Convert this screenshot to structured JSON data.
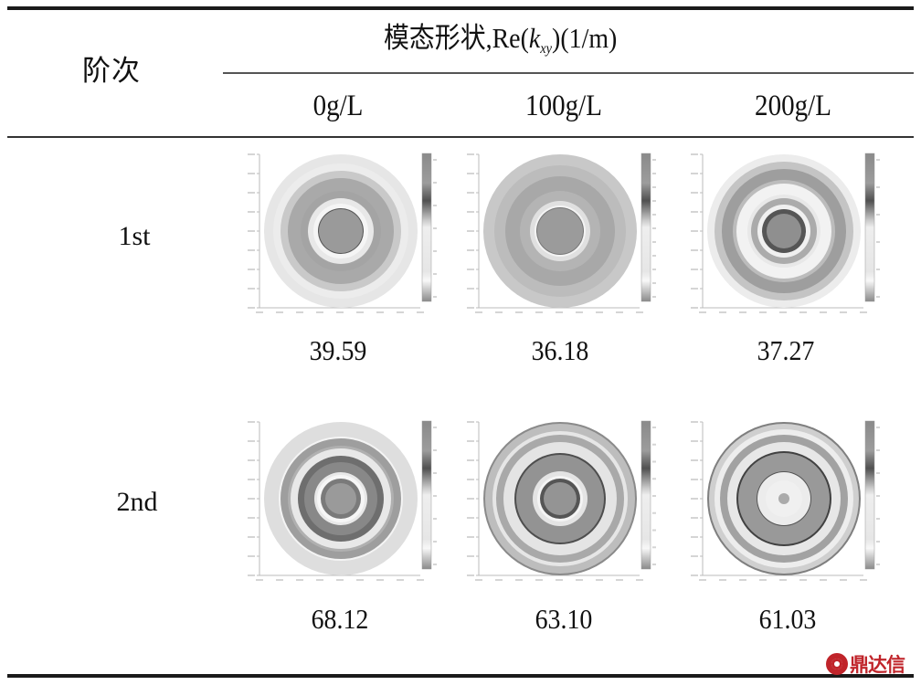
{
  "table": {
    "header": {
      "order_label": "阶次",
      "span_label_prefix": "模态形状,Re(",
      "span_label_var": "k",
      "span_label_sub": "xy",
      "span_label_suffix": ")(1/m)",
      "columns": [
        "0g/L",
        "100g/L",
        "200g/L"
      ]
    },
    "rows": [
      {
        "label": "1st",
        "values": [
          "39.59",
          "36.18",
          "37.27"
        ],
        "plots": [
          {
            "name": "mode-1st-0gL",
            "colorbar_ticks": [
              "0.7",
              "0.66",
              "0.6",
              "0.48",
              "0.36",
              "0.24",
              "0.1"
            ]
          },
          {
            "name": "mode-1st-100gL",
            "colorbar_ticks": [
              "0.66",
              "0.6",
              "0.48",
              "0.4",
              "0.36",
              "0.3",
              "0.28",
              "0.2",
              "0.16",
              "0.1",
              "0.06"
            ]
          },
          {
            "name": "mode-1st-200gL",
            "colorbar_ticks": [
              "0.3",
              "0.25",
              "0.2",
              "0.15",
              "0.1",
              "0.05"
            ]
          }
        ]
      },
      {
        "label": "2nd",
        "values": [
          "68.12",
          "63.10",
          "61.03"
        ],
        "plots": [
          {
            "name": "mode-2nd-0gL",
            "colorbar_ticks": [
              "0.7",
              "0.6",
              "0.5",
              "0.4",
              "0.3",
              "0.2",
              "0.1"
            ]
          },
          {
            "name": "mode-2nd-100gL",
            "colorbar_ticks": [
              "0.48",
              "0.4",
              "0.32",
              "0.3",
              "0.25",
              "0.2",
              "0.15",
              "0.1",
              "0.05"
            ]
          },
          {
            "name": "mode-2nd-200gL",
            "colorbar_ticks": [
              "0.7",
              "0.6",
              "0.5",
              "0.4",
              "0.3",
              "0.2",
              "0.1"
            ]
          }
        ]
      }
    ]
  },
  "watermark": {
    "text": "鼎达信",
    "color": "#c0242a"
  }
}
